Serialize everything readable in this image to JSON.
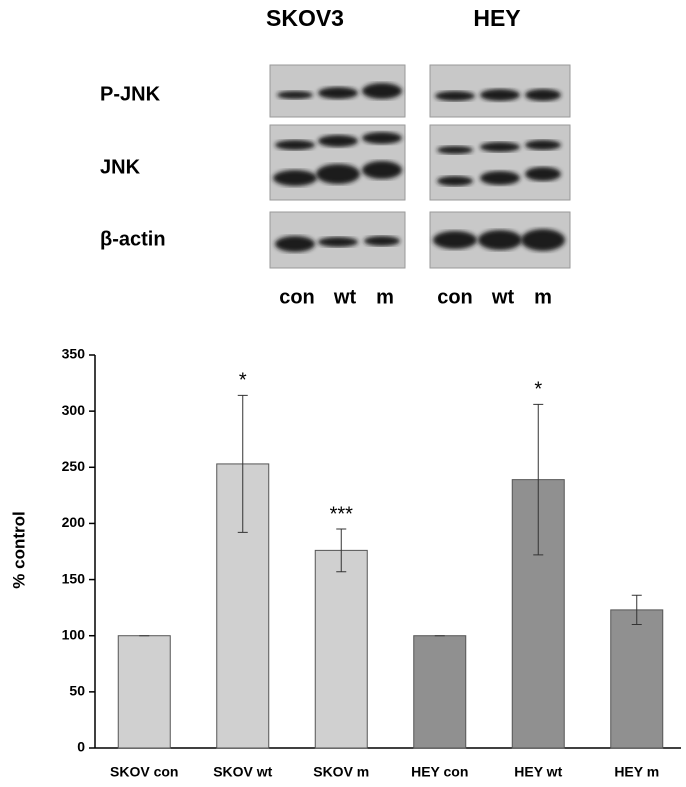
{
  "blot": {
    "cell_lines": [
      "SKOV3",
      "HEY"
    ],
    "rows": [
      "P-JNK",
      "JNK",
      "β-actin"
    ],
    "lanes": [
      "con",
      "wt",
      "m",
      "con",
      "wt",
      "m"
    ]
  },
  "chart_data": {
    "type": "bar",
    "ylabel": "% control",
    "categories": [
      "SKOV con",
      "SKOV wt",
      "SKOV m",
      "HEY con",
      "HEY wt",
      "HEY m"
    ],
    "values": [
      100,
      253,
      176,
      100,
      239,
      123
    ],
    "errors": [
      0,
      61,
      19,
      0,
      67,
      13
    ],
    "significance": [
      null,
      "*",
      "***",
      null,
      "*",
      null
    ],
    "colors": [
      "#d0d0d0",
      "#d0d0d0",
      "#d0d0d0",
      "#909090",
      "#909090",
      "#909090"
    ],
    "ylim": [
      0,
      350
    ],
    "yticks": [
      0,
      50,
      100,
      150,
      200,
      250,
      300,
      350
    ]
  }
}
